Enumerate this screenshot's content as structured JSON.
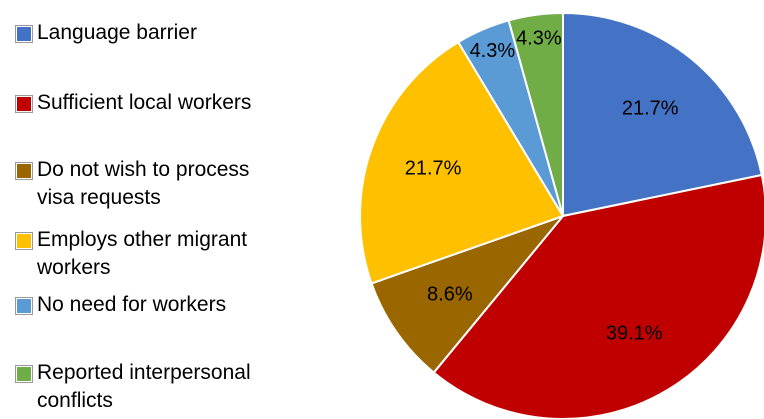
{
  "chart_data": {
    "type": "pie",
    "categories": [
      "Language barrier",
      "Sufficient local workers",
      "Do not wish to process visa requests",
      "Employs other migrant workers",
      "No need for workers",
      "Reported interpersonal conflicts"
    ],
    "values": [
      21.7,
      39.1,
      8.6,
      21.7,
      4.3,
      4.3
    ],
    "value_labels": [
      "21.7%",
      "39.1%",
      "8.6%",
      "21.7%",
      "4.3%",
      "4.3%"
    ],
    "colors": [
      "#4472c4",
      "#c00000",
      "#996600",
      "#ffc000",
      "#5b9bd5",
      "#70ad47"
    ],
    "legend": "left"
  }
}
